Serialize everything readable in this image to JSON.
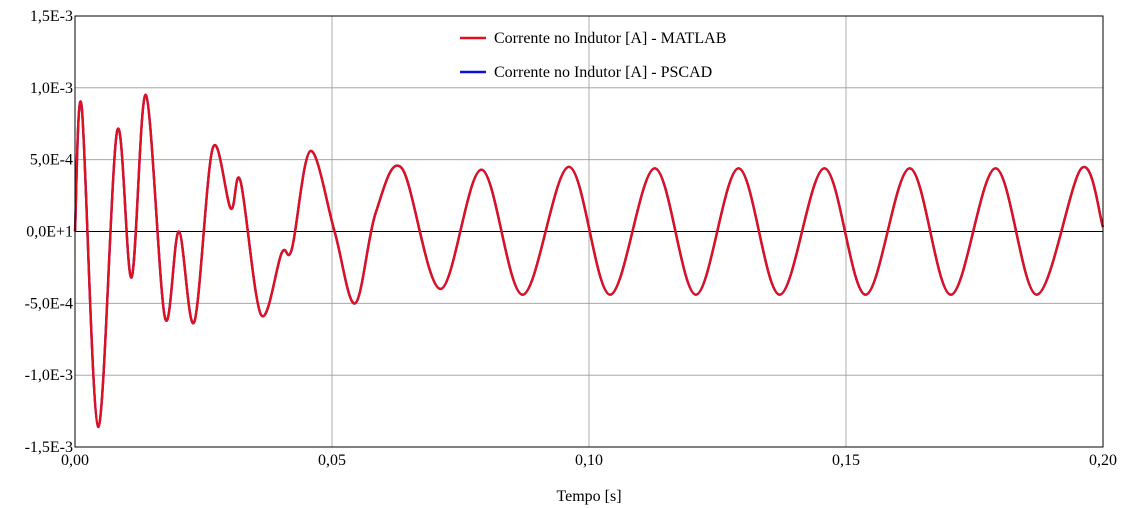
{
  "chart_data": {
    "type": "line",
    "title": "",
    "xlabel": "Tempo [s]",
    "ylabel": "",
    "xlim": [
      0,
      0.2
    ],
    "ylim": [
      -0.0015,
      0.0015
    ],
    "x_ticks": [
      0,
      0.05,
      0.1,
      0.15,
      0.2
    ],
    "x_tick_labels": [
      "0,00",
      "0,05",
      "0,10",
      "0,15",
      "0,20"
    ],
    "y_ticks": [
      0.0015,
      0.001,
      0.0005,
      0,
      -0.0005,
      -0.001,
      -0.0015
    ],
    "y_tick_labels": [
      "1,5E-3",
      "1,0E-3",
      "5,0E-4",
      "0,0E+1",
      "-5,0E-4",
      "-1,0E-3",
      "-1,5E-3"
    ],
    "grid": true,
    "legend_position": "top-center",
    "series": [
      {
        "name": "Corrente no Indutor [A] - MATLAB",
        "color": "#e0101e",
        "x": [
          0,
          0.0013,
          0.0045,
          0.0082,
          0.011,
          0.0138,
          0.0175,
          0.0202,
          0.0232,
          0.0268,
          0.0303,
          0.0322,
          0.0362,
          0.0402,
          0.0422,
          0.0458,
          0.0505,
          0.0545,
          0.0585,
          0.0636,
          0.0711,
          0.0791,
          0.0871,
          0.0961,
          0.1041,
          0.1128,
          0.1208,
          0.1291,
          0.1371,
          0.1458,
          0.1538,
          0.1624,
          0.1704,
          0.1791,
          0.1871,
          0.1958,
          0.2
        ],
        "values": [
          0,
          0.00087,
          -0.00136,
          0.0007,
          -0.00032,
          0.00095,
          -0.0006,
          0,
          -0.00063,
          0.00058,
          0.00016,
          0.00035,
          -0.00058,
          -0.00015,
          -0.00012,
          0.00056,
          0,
          -0.0005,
          0.00013,
          0.00044,
          -0.0004,
          0.00043,
          -0.00044,
          0.00045,
          -0.00044,
          0.00044,
          -0.00044,
          0.00044,
          -0.00044,
          0.00044,
          -0.00044,
          0.00044,
          -0.00044,
          0.00044,
          -0.00044,
          0.00044,
          3e-05
        ]
      },
      {
        "name": "Corrente no Indutor [A] - PSCAD",
        "color": "#0a10d8",
        "x": [
          0,
          0.0013,
          0.0045,
          0.0082,
          0.011,
          0.0138,
          0.0175,
          0.0202,
          0.0232,
          0.0268,
          0.0303,
          0.0322,
          0.0362,
          0.0402,
          0.0422,
          0.0458,
          0.0505,
          0.0545,
          0.0585,
          0.0636,
          0.0711,
          0.0791,
          0.0871,
          0.0961,
          0.1041,
          0.1128,
          0.1208,
          0.1291,
          0.1371,
          0.1458,
          0.1538,
          0.1624,
          0.1704,
          0.1791,
          0.1871,
          0.1958,
          0.2
        ],
        "values": [
          0,
          0.00087,
          -0.00136,
          0.0007,
          -0.00032,
          0.00095,
          -0.0006,
          0,
          -0.00063,
          0.00058,
          0.00016,
          0.00035,
          -0.00058,
          -0.00015,
          -0.00012,
          0.00056,
          0,
          -0.0005,
          0.00013,
          0.00044,
          -0.0004,
          0.00043,
          -0.00044,
          0.00045,
          -0.00044,
          0.00044,
          -0.00044,
          0.00044,
          -0.00044,
          0.00044,
          -0.00044,
          0.00044,
          -0.00044,
          0.00044,
          -0.00044,
          0.00044,
          3e-05
        ]
      }
    ]
  }
}
